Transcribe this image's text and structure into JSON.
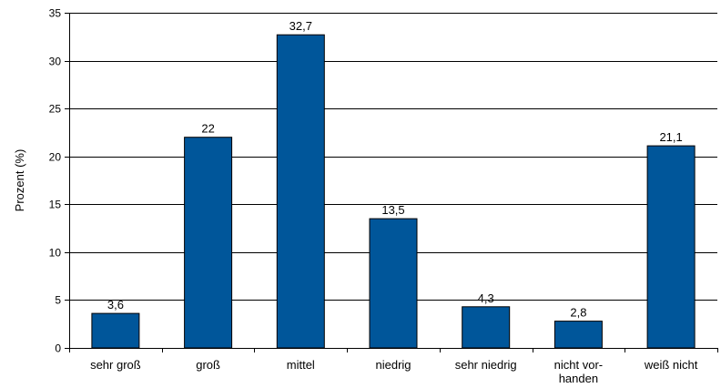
{
  "chart_data": {
    "type": "bar",
    "title": "",
    "xlabel": "",
    "ylabel": "Prozent (%)",
    "ylim": [
      0,
      35
    ],
    "yticks": [
      0,
      5,
      10,
      15,
      20,
      25,
      30,
      35
    ],
    "grid": true,
    "legend": "none",
    "bar_color": "#00569a",
    "categories": [
      [
        "sehr groß"
      ],
      [
        "groß"
      ],
      [
        "mittel"
      ],
      [
        "niedrig"
      ],
      [
        "sehr niedrig"
      ],
      [
        "nicht vor-",
        "handen"
      ],
      [
        "weiß nicht"
      ]
    ],
    "values": [
      3.6,
      22,
      32.7,
      13.5,
      4.3,
      2.8,
      21.1
    ],
    "value_labels": [
      "3,6",
      "22",
      "32,7",
      "13,5",
      "4,3",
      "2,8",
      "21,1"
    ]
  }
}
